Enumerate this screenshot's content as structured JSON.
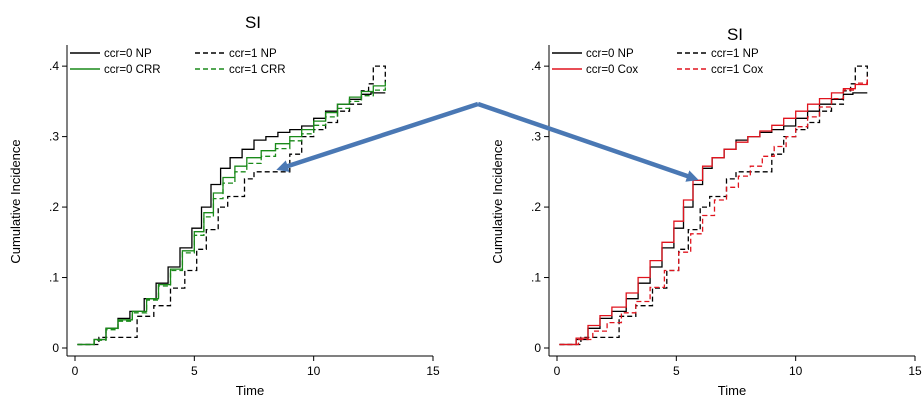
{
  "chart_data": [
    {
      "type": "line",
      "title": "SI",
      "xlabel": "Time",
      "ylabel": "Cumulative Incidence",
      "xlim": [
        0,
        15
      ],
      "ylim": [
        0,
        0.43
      ],
      "xticks": [
        {
          "value": 0,
          "label": "0"
        },
        {
          "value": 5,
          "label": "5"
        },
        {
          "value": 10,
          "label": "10"
        },
        {
          "value": 15,
          "label": "15"
        }
      ],
      "yticks": [
        {
          "value": 0,
          "label": "0"
        },
        {
          "value": 0.1,
          "label": ".1"
        },
        {
          "value": 0.2,
          "label": ".2"
        },
        {
          "value": 0.3,
          "label": ".3"
        },
        {
          "value": 0.4,
          "label": ".4"
        }
      ],
      "grid": false,
      "step": true,
      "legend": "top-left, two columns",
      "series": [
        {
          "name": "ccr=0 NP",
          "color": "#000000",
          "dash": "solid",
          "x": [
            0.1,
            0.8,
            1.3,
            1.8,
            2.3,
            2.9,
            3.4,
            3.9,
            4.4,
            4.9,
            5.3,
            5.7,
            6.1,
            6.5,
            7.0,
            7.5,
            8.0,
            8.5,
            9.0,
            9.5,
            10.0,
            10.5,
            11.0,
            11.5,
            12.0,
            12.4,
            13.0
          ],
          "y": [
            0.005,
            0.012,
            0.028,
            0.042,
            0.052,
            0.07,
            0.092,
            0.115,
            0.142,
            0.17,
            0.2,
            0.232,
            0.255,
            0.27,
            0.282,
            0.295,
            0.3,
            0.306,
            0.31,
            0.315,
            0.326,
            0.336,
            0.346,
            0.353,
            0.36,
            0.362,
            0.362
          ]
        },
        {
          "name": "ccr=1 NP",
          "color": "#000000",
          "dash": "dashed",
          "x": [
            0.1,
            1.0,
            2.2,
            2.6,
            3.3,
            4.0,
            4.6,
            5.1,
            5.5,
            6.0,
            6.4,
            7.1,
            7.5,
            8.0,
            9.0,
            9.5,
            10.0,
            10.5,
            11.0,
            11.5,
            12.0,
            12.3,
            12.5,
            13.0
          ],
          "y": [
            0.005,
            0.015,
            0.015,
            0.045,
            0.06,
            0.085,
            0.11,
            0.14,
            0.168,
            0.2,
            0.215,
            0.24,
            0.25,
            0.25,
            0.275,
            0.3,
            0.31,
            0.32,
            0.336,
            0.346,
            0.365,
            0.375,
            0.4,
            0.376
          ]
        },
        {
          "name": "ccr=0 CRR",
          "color": "#1a8a1a",
          "dash": "solid",
          "x": [
            0.1,
            0.8,
            1.3,
            1.8,
            2.4,
            3.0,
            3.5,
            4.0,
            4.5,
            5.0,
            5.4,
            5.8,
            6.2,
            6.7,
            7.2,
            7.8,
            8.4,
            9.0,
            9.5,
            10.0,
            10.5,
            11.0,
            11.5,
            12.0,
            12.5,
            13.0
          ],
          "y": [
            0.005,
            0.012,
            0.028,
            0.04,
            0.052,
            0.07,
            0.09,
            0.112,
            0.138,
            0.165,
            0.192,
            0.22,
            0.242,
            0.258,
            0.27,
            0.28,
            0.29,
            0.3,
            0.31,
            0.322,
            0.334,
            0.346,
            0.356,
            0.364,
            0.372,
            0.378
          ]
        },
        {
          "name": "ccr=1 CRR",
          "color": "#1a8a1a",
          "dash": "dashed",
          "x": [
            0.1,
            0.8,
            1.3,
            1.8,
            2.4,
            3.0,
            3.5,
            4.0,
            4.5,
            5.0,
            5.4,
            5.8,
            6.2,
            6.7,
            7.2,
            7.8,
            8.4,
            9.0,
            9.5,
            10.0,
            10.5,
            11.0,
            11.5,
            12.0,
            12.5,
            13.0
          ],
          "y": [
            0.005,
            0.011,
            0.026,
            0.038,
            0.05,
            0.068,
            0.088,
            0.11,
            0.135,
            0.16,
            0.186,
            0.212,
            0.234,
            0.25,
            0.262,
            0.272,
            0.283,
            0.294,
            0.304,
            0.316,
            0.328,
            0.34,
            0.35,
            0.358,
            0.366,
            0.372
          ]
        }
      ]
    },
    {
      "type": "line",
      "title": "SI",
      "xlabel": "Time",
      "ylabel": "Cumulative Incidence",
      "xlim": [
        0,
        15
      ],
      "ylim": [
        0,
        0.43
      ],
      "xticks": [
        {
          "value": 0,
          "label": "0"
        },
        {
          "value": 5,
          "label": "5"
        },
        {
          "value": 10,
          "label": "10"
        },
        {
          "value": 15,
          "label": "15"
        }
      ],
      "yticks": [
        {
          "value": 0,
          "label": "0"
        },
        {
          "value": 0.1,
          "label": ".1"
        },
        {
          "value": 0.2,
          "label": ".2"
        },
        {
          "value": 0.3,
          "label": ".3"
        },
        {
          "value": 0.4,
          "label": ".4"
        }
      ],
      "grid": false,
      "step": true,
      "legend": "top-left, two columns",
      "series": [
        {
          "name": "ccr=0 NP",
          "color": "#000000",
          "dash": "solid",
          "x": [
            0.1,
            0.8,
            1.3,
            1.8,
            2.3,
            2.9,
            3.4,
            3.9,
            4.4,
            4.9,
            5.3,
            5.7,
            6.1,
            6.5,
            7.0,
            7.5,
            8.0,
            8.5,
            9.0,
            9.5,
            10.0,
            10.5,
            11.0,
            11.5,
            12.0,
            12.4,
            13.0
          ],
          "y": [
            0.005,
            0.012,
            0.028,
            0.042,
            0.052,
            0.07,
            0.092,
            0.115,
            0.142,
            0.17,
            0.2,
            0.232,
            0.255,
            0.27,
            0.282,
            0.295,
            0.3,
            0.306,
            0.31,
            0.315,
            0.326,
            0.336,
            0.346,
            0.353,
            0.36,
            0.362,
            0.362
          ]
        },
        {
          "name": "ccr=1 NP",
          "color": "#000000",
          "dash": "dashed",
          "x": [
            0.1,
            1.0,
            2.2,
            2.6,
            3.3,
            4.0,
            4.6,
            5.1,
            5.5,
            6.0,
            6.4,
            7.1,
            7.5,
            8.0,
            9.0,
            9.5,
            10.0,
            10.5,
            11.0,
            11.5,
            12.0,
            12.3,
            12.5,
            13.0
          ],
          "y": [
            0.005,
            0.015,
            0.015,
            0.045,
            0.06,
            0.085,
            0.11,
            0.14,
            0.168,
            0.2,
            0.215,
            0.24,
            0.25,
            0.25,
            0.275,
            0.3,
            0.31,
            0.32,
            0.336,
            0.346,
            0.365,
            0.375,
            0.4,
            0.376
          ]
        },
        {
          "name": "ccr=0 Cox",
          "color": "#e0141e",
          "dash": "solid",
          "x": [
            0.1,
            0.8,
            1.3,
            1.8,
            2.3,
            2.9,
            3.4,
            3.9,
            4.4,
            4.9,
            5.3,
            5.7,
            6.1,
            6.5,
            7.0,
            7.5,
            8.0,
            8.5,
            9.0,
            9.5,
            10.0,
            10.5,
            11.0,
            11.5,
            12.0,
            12.5,
            13.0
          ],
          "y": [
            0.005,
            0.014,
            0.032,
            0.046,
            0.058,
            0.078,
            0.1,
            0.124,
            0.15,
            0.18,
            0.21,
            0.238,
            0.258,
            0.27,
            0.282,
            0.292,
            0.3,
            0.308,
            0.316,
            0.326,
            0.336,
            0.346,
            0.354,
            0.362,
            0.368,
            0.374,
            0.378
          ]
        },
        {
          "name": "ccr=1 Cox",
          "color": "#e0141e",
          "dash": "dashed",
          "x": [
            0.1,
            0.9,
            1.5,
            2.1,
            2.7,
            3.3,
            3.9,
            4.5,
            5.1,
            5.6,
            6.1,
            6.6,
            7.1,
            7.6,
            8.1,
            8.6,
            9.1,
            9.6,
            10.0,
            10.5,
            11.0,
            11.5,
            12.0,
            12.5,
            13.0
          ],
          "y": [
            0.005,
            0.012,
            0.024,
            0.036,
            0.05,
            0.066,
            0.086,
            0.11,
            0.136,
            0.162,
            0.188,
            0.21,
            0.228,
            0.244,
            0.258,
            0.272,
            0.286,
            0.3,
            0.314,
            0.328,
            0.342,
            0.354,
            0.366,
            0.376,
            0.386
          ]
        }
      ]
    }
  ],
  "annotations": {
    "arrow_color": "#4a78b4",
    "description_free": true
  }
}
